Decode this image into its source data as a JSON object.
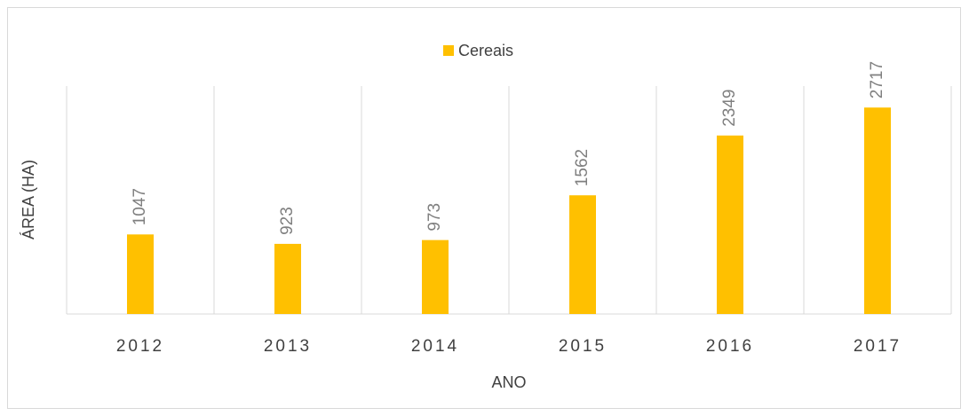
{
  "chart_data": {
    "type": "bar",
    "x_label": "ANO",
    "y_label": "ÁREA (HA)",
    "categories": [
      "2012",
      "2013",
      "2014",
      "2015",
      "2016",
      "2017"
    ],
    "series": [
      {
        "name": "Cereais",
        "color": "#ffc000",
        "values": [
          1047,
          923,
          973,
          1562,
          2349,
          2717
        ]
      }
    ],
    "ylim": [
      0,
      3000
    ],
    "legend": "top",
    "category_separators": true
  }
}
